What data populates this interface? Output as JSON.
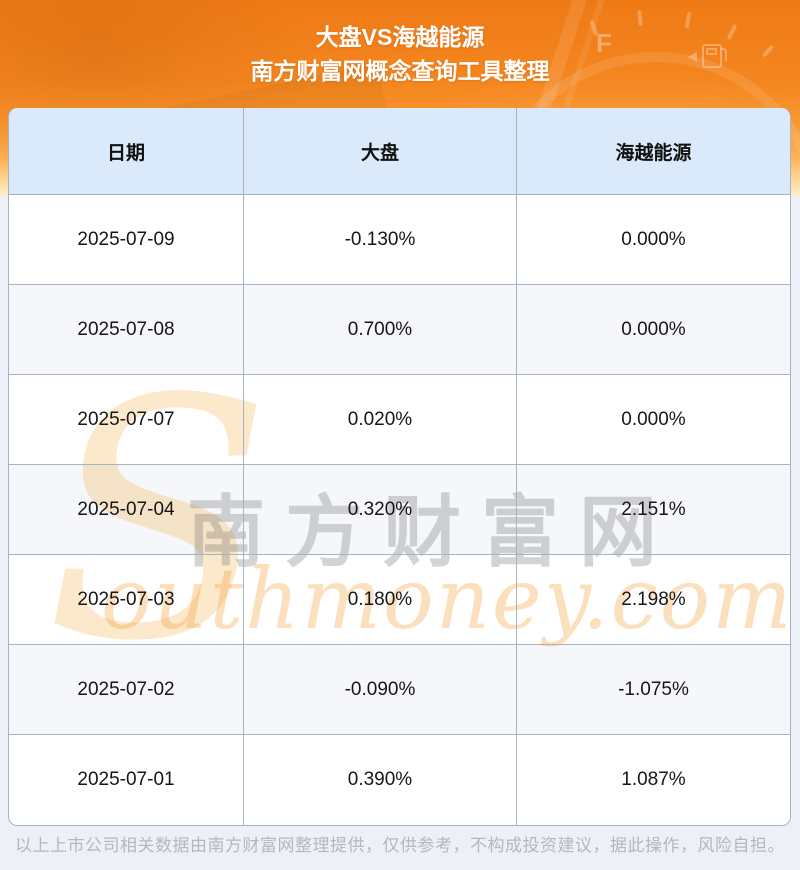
{
  "banner": {
    "title_line1": "大盘VS海越能源",
    "title_line2": "南方财富网概念查询工具整理"
  },
  "chart_data": {
    "type": "table",
    "title": "大盘VS海越能源",
    "subtitle": "南方财富网概念查询工具整理",
    "columns": [
      "日期",
      "大盘",
      "海越能源"
    ],
    "rows": [
      [
        "2025-07-09",
        "-0.130%",
        "0.000%"
      ],
      [
        "2025-07-08",
        "0.700%",
        "0.000%"
      ],
      [
        "2025-07-07",
        "0.020%",
        "0.000%"
      ],
      [
        "2025-07-04",
        "0.320%",
        "2.151%"
      ],
      [
        "2025-07-03",
        "0.180%",
        "2.198%"
      ],
      [
        "2025-07-02",
        "-0.090%",
        "-1.075%"
      ],
      [
        "2025-07-01",
        "0.390%",
        "1.087%"
      ]
    ],
    "x": [
      "2025-07-09",
      "2025-07-08",
      "2025-07-07",
      "2025-07-04",
      "2025-07-03",
      "2025-07-02",
      "2025-07-01"
    ],
    "series": [
      {
        "name": "大盘",
        "values": [
          -0.13,
          0.7,
          0.02,
          0.32,
          0.18,
          -0.09,
          0.39
        ]
      },
      {
        "name": "海越能源",
        "values": [
          0.0,
          0.0,
          0.0,
          2.151,
          2.198,
          -1.075,
          1.087
        ]
      }
    ],
    "unit": "%",
    "layout": {
      "grid": true,
      "striped_rows": true,
      "header_background": "#dbeafa"
    }
  },
  "watermark": {
    "initial": "S",
    "brand_cn": "南方财富网",
    "brand_en": "outhmoney.com"
  },
  "footer": {
    "disclaimer": "以上上市公司相关数据由南方财富网整理提供，仅供参考，不构成投资建议，据此操作，风险自担。"
  },
  "colors": {
    "banner_orange": "#f5861f",
    "banner_fade": "#fdeecf",
    "header_row_blue": "#dbeafa",
    "row_alt_gray": "#f5f7fa",
    "table_border": "#a6b4c2",
    "page_background": "#edf1f7",
    "title_text": "#ffffff",
    "cell_text": "#161616",
    "footer_text": "#b4b8bd",
    "watermark_orange": "#f6a23a",
    "watermark_gray": "#d6d6d6"
  }
}
